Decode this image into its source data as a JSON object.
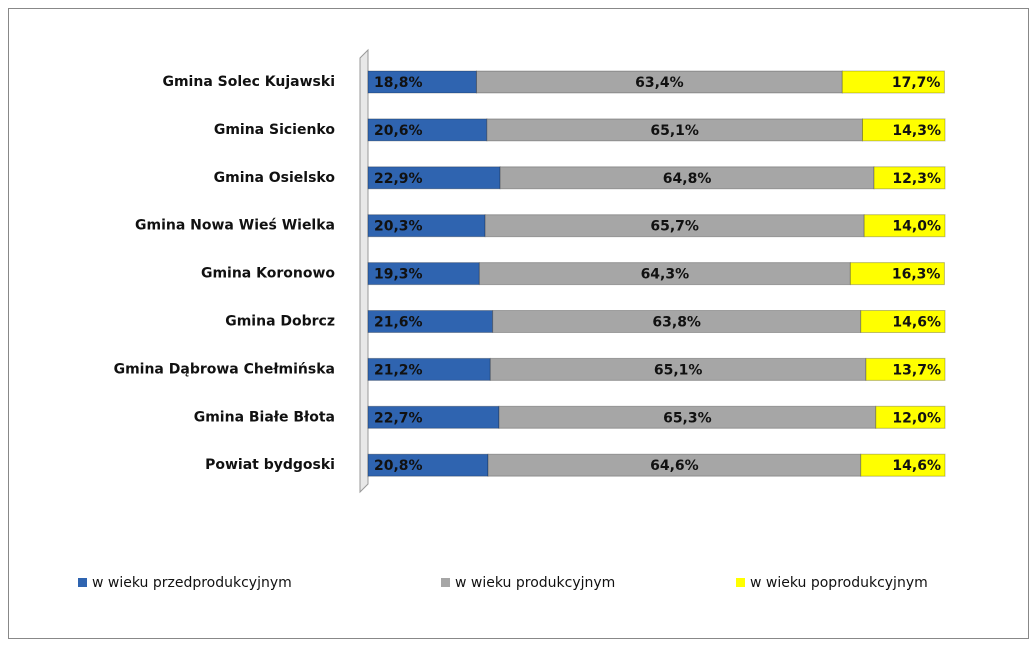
{
  "chart_data": {
    "type": "stacked-bar-horizontal",
    "categories": [
      "Gmina Solec Kujawski",
      "Gmina Sicienko",
      "Gmina Osielsko",
      "Gmina Nowa Wieś Wielka",
      "Gmina Koronowo",
      "Gmina Dobrcz",
      "Gmina Dąbrowa Chełmińska",
      "Gmina Białe Błota",
      "Powiat bydgoski"
    ],
    "series": [
      {
        "name": "w wieku przedprodukcyjnym",
        "color": "#2f64b0",
        "values": [
          18.8,
          20.6,
          22.9,
          20.3,
          19.3,
          21.6,
          21.2,
          22.7,
          20.8
        ],
        "value_labels": [
          "18,8%",
          "20,6%",
          "22,9%",
          "20,3%",
          "19,3%",
          "21,6%",
          "21,2%",
          "22,7%",
          "20,8%"
        ]
      },
      {
        "name": "w wieku produkcyjnym",
        "color": "#a6a6a6",
        "values": [
          63.4,
          65.1,
          64.8,
          65.7,
          64.3,
          63.8,
          65.1,
          65.3,
          64.6
        ],
        "value_labels": [
          "63,4%",
          "65,1%",
          "64,8%",
          "65,7%",
          "64,3%",
          "63,8%",
          "65,1%",
          "65,3%",
          "64,6%"
        ]
      },
      {
        "name": "w wieku poprodukcyjnym",
        "color": "#ffff00",
        "values": [
          17.7,
          14.3,
          12.3,
          14.0,
          16.3,
          14.6,
          13.7,
          12.0,
          14.6
        ],
        "value_labels": [
          "17,7%",
          "14,3%",
          "12,3%",
          "14,0%",
          "16,3%",
          "14,6%",
          "13,7%",
          "12,0%",
          "14,6%"
        ]
      }
    ],
    "xlim": [
      0,
      100
    ],
    "legend": "bottom"
  }
}
